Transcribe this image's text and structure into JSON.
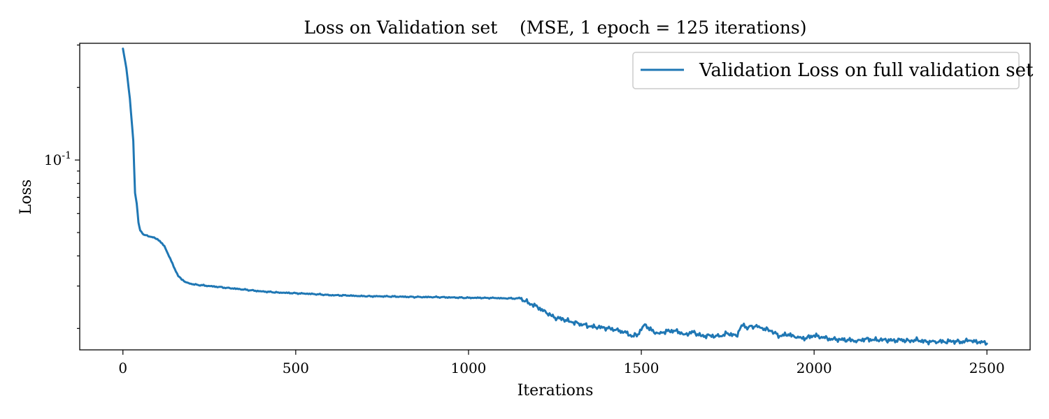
{
  "chart_data": {
    "type": "line",
    "title": "Loss on Validation set    (MSE, 1 epoch = 125 iterations)",
    "xlabel": "Iterations",
    "ylabel": "Loss",
    "yscale": "log",
    "xlim": [
      -125,
      2625
    ],
    "ylim": [
      0.0163,
      0.305
    ],
    "x_ticks": [
      0,
      500,
      1000,
      1500,
      2000,
      2500
    ],
    "x_tick_labels": [
      "0",
      "500",
      "1000",
      "1500",
      "2000",
      "2500"
    ],
    "y_major_ticks": [
      0.1
    ],
    "y_major_tick_base": "10",
    "y_major_tick_exponent": "-1",
    "y_minor_ticks": [
      0.02,
      0.03,
      0.04,
      0.05,
      0.06,
      0.07,
      0.08,
      0.09,
      0.2,
      0.3
    ],
    "grid": false,
    "legend": {
      "position": "top-right"
    },
    "series": [
      {
        "name": "Validation Loss on full validation set",
        "color": "#1f77b4",
        "x": [
          0,
          10,
          20,
          30,
          35,
          40,
          45,
          50,
          60,
          80,
          100,
          120,
          140,
          160,
          180,
          200,
          250,
          300,
          350,
          400,
          450,
          500,
          550,
          600,
          650,
          700,
          750,
          800,
          850,
          900,
          950,
          1000,
          1050,
          1100,
          1150,
          1175,
          1200,
          1225,
          1250,
          1275,
          1300,
          1325,
          1350,
          1375,
          1400,
          1425,
          1450,
          1475,
          1490,
          1510,
          1530,
          1550,
          1575,
          1600,
          1625,
          1650,
          1675,
          1700,
          1725,
          1750,
          1775,
          1790,
          1810,
          1830,
          1850,
          1875,
          1900,
          1925,
          1950,
          1975,
          2000,
          2025,
          2050,
          2075,
          2100,
          2125,
          2150,
          2175,
          2200,
          2225,
          2250,
          2275,
          2300,
          2325,
          2350,
          2375,
          2400,
          2425,
          2450,
          2475,
          2490,
          2500
        ],
        "y": [
          0.29,
          0.24,
          0.18,
          0.12,
          0.073,
          0.066,
          0.055,
          0.051,
          0.049,
          0.048,
          0.047,
          0.044,
          0.038,
          0.033,
          0.0312,
          0.0305,
          0.03,
          0.0295,
          0.029,
          0.0285,
          0.0282,
          0.028,
          0.0278,
          0.0275,
          0.0274,
          0.0272,
          0.0272,
          0.0271,
          0.027,
          0.027,
          0.0269,
          0.0268,
          0.0268,
          0.0267,
          0.0266,
          0.0255,
          0.0245,
          0.0232,
          0.0222,
          0.0218,
          0.0212,
          0.0209,
          0.0204,
          0.0202,
          0.0201,
          0.0197,
          0.0193,
          0.0186,
          0.0189,
          0.0208,
          0.0196,
          0.0191,
          0.0195,
          0.0196,
          0.0189,
          0.0193,
          0.0186,
          0.0187,
          0.0185,
          0.0191,
          0.0186,
          0.0206,
          0.0202,
          0.0204,
          0.0201,
          0.0195,
          0.0186,
          0.0189,
          0.0183,
          0.0182,
          0.0187,
          0.0183,
          0.0181,
          0.018,
          0.0179,
          0.0178,
          0.0181,
          0.0179,
          0.018,
          0.0178,
          0.0179,
          0.0178,
          0.0179,
          0.0176,
          0.0177,
          0.0176,
          0.0177,
          0.0176,
          0.0178,
          0.0175,
          0.0176,
          0.0173
        ]
      }
    ]
  }
}
